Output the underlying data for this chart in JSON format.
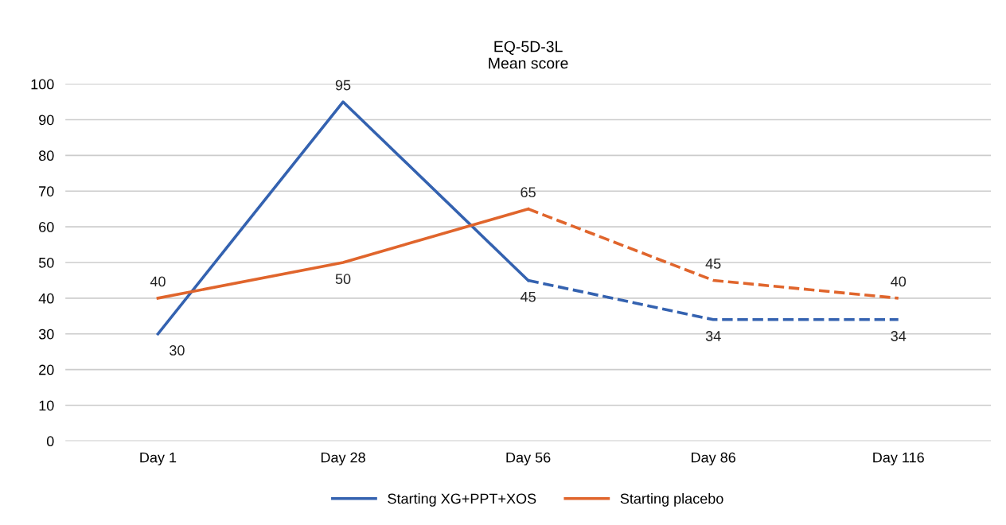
{
  "chart_data": {
    "type": "line",
    "title": "EQ-5D-3L\nMean score",
    "categories": [
      "Day 1",
      "Day 28",
      "Day 56",
      "Day 86",
      "Day 116"
    ],
    "series": [
      {
        "name": "Starting XG+PPT+XOS",
        "color": "#3462b0",
        "values": [
          30,
          95,
          45,
          null,
          null
        ],
        "value_labels": [
          "30",
          "95",
          "45",
          null,
          null
        ]
      },
      {
        "name": "Starting placebo",
        "color": "#e0652c",
        "values": [
          40,
          50,
          65,
          null,
          null
        ],
        "value_labels": [
          "40",
          "50",
          "65",
          null,
          null
        ]
      },
      {
        "color": "#3462b0",
        "line_style": "dashed",
        "values": [
          null,
          null,
          45,
          34,
          34
        ],
        "value_labels": [
          null,
          null,
          null,
          "34",
          "34"
        ]
      },
      {
        "color": "#e0652c",
        "line_style": "dashed",
        "values": [
          null,
          null,
          65,
          45,
          40
        ],
        "value_labels": [
          null,
          null,
          null,
          "45",
          "40"
        ]
      }
    ],
    "ylim": [
      0,
      100
    ],
    "yticks": [
      0,
      10,
      20,
      30,
      40,
      50,
      60,
      70,
      80,
      90,
      100
    ],
    "grid": "y",
    "legend": "bottom",
    "marker": "none",
    "line_style": "solid"
  }
}
